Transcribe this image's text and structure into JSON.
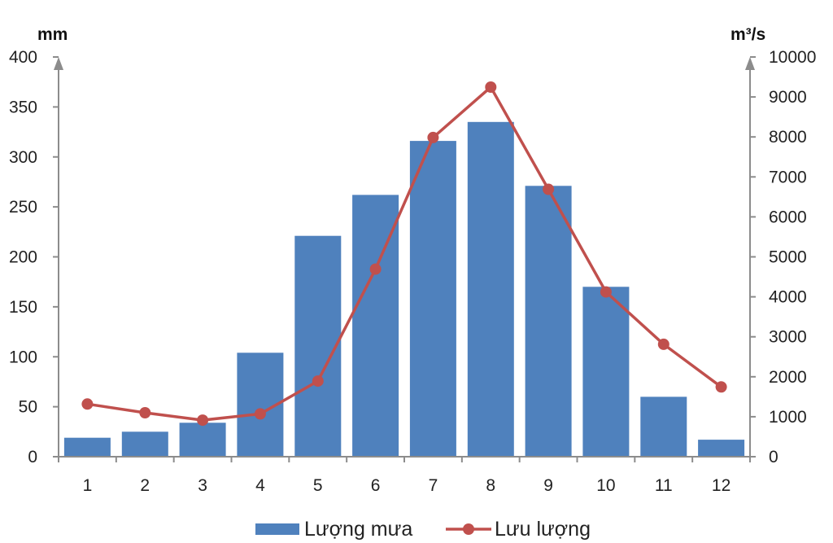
{
  "chart_data": {
    "type": "bar",
    "categories": [
      "1",
      "2",
      "3",
      "4",
      "5",
      "6",
      "7",
      "8",
      "9",
      "10",
      "11",
      "12"
    ],
    "series": [
      {
        "name": "Lượng mưa",
        "type": "bar",
        "axis": "left",
        "color": "#4f81bd",
        "values": [
          19,
          25,
          34,
          104,
          221,
          262,
          316,
          335,
          271,
          170,
          60,
          17
        ]
      },
      {
        "name": "Lưu lượng",
        "type": "line",
        "axis": "right",
        "color": "#c0504d",
        "values": [
          1318,
          1100,
          914,
          1071,
          1893,
          4692,
          7986,
          9246,
          6690,
          4122,
          2813,
          1746
        ]
      }
    ],
    "y_left": {
      "unit": "mm",
      "range": [
        0,
        400
      ],
      "ticks": [
        "0",
        "50",
        "100",
        "150",
        "200",
        "250",
        "300",
        "350",
        "400"
      ]
    },
    "y_right": {
      "unit": "m³/s",
      "range": [
        0,
        10000
      ],
      "ticks": [
        "0",
        "1000",
        "2000",
        "3000",
        "4000",
        "5000",
        "6000",
        "7000",
        "8000",
        "9000",
        "10000"
      ]
    },
    "grid": false,
    "legend": "bottom-center"
  }
}
